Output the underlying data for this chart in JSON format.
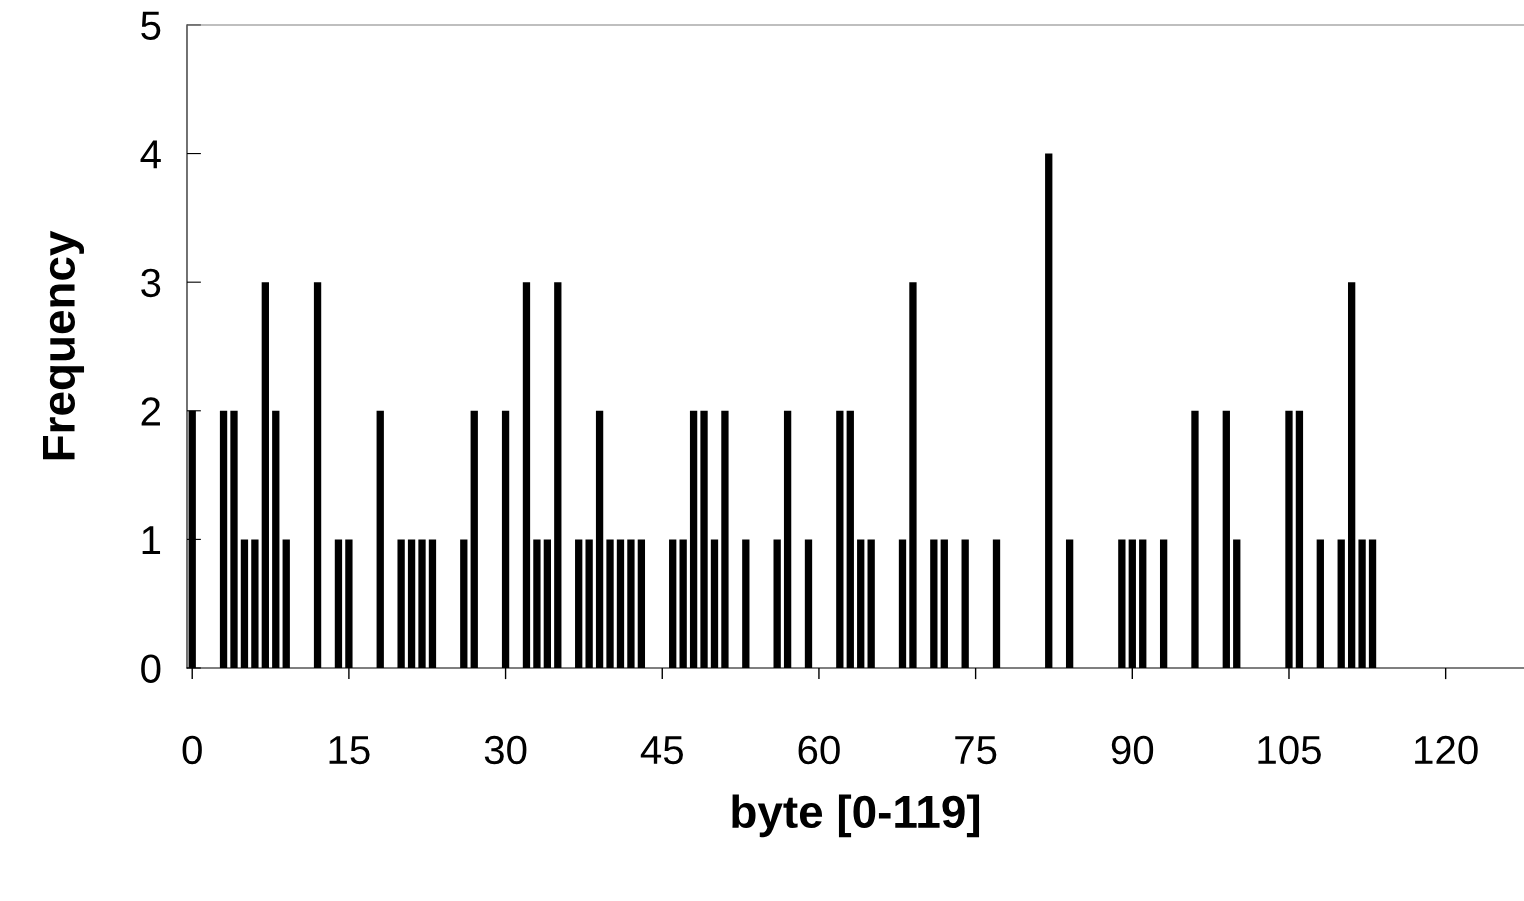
{
  "chart_data": {
    "type": "bar",
    "xlabel": "byte [0-119]",
    "ylabel": "Frequency",
    "x": [
      0,
      3,
      4,
      5,
      6,
      7,
      8,
      9,
      12,
      14,
      15,
      18,
      20,
      21,
      22,
      23,
      26,
      27,
      30,
      32,
      33,
      34,
      35,
      37,
      38,
      39,
      40,
      41,
      42,
      43,
      46,
      47,
      48,
      49,
      50,
      51,
      53,
      56,
      57,
      59,
      62,
      63,
      64,
      65,
      68,
      69,
      71,
      72,
      74,
      77,
      82,
      84,
      89,
      90,
      91,
      93,
      96,
      99,
      100,
      105,
      106,
      108,
      110,
      111,
      112,
      113
    ],
    "values": [
      2,
      2,
      2,
      1,
      1,
      3,
      2,
      1,
      3,
      1,
      1,
      2,
      1,
      1,
      1,
      1,
      1,
      2,
      2,
      3,
      1,
      1,
      3,
      1,
      1,
      2,
      1,
      1,
      1,
      1,
      1,
      1,
      2,
      2,
      1,
      2,
      1,
      1,
      2,
      1,
      2,
      2,
      1,
      1,
      1,
      3,
      1,
      1,
      1,
      1,
      4,
      1,
      1,
      1,
      1,
      1,
      2,
      2,
      1,
      2,
      2,
      1,
      1,
      3,
      1,
      1
    ],
    "color": "#000000",
    "xlim": [
      -0.5,
      127.5
    ],
    "xticks": [
      {
        "value": 0,
        "label": "0"
      },
      {
        "value": 15,
        "label": "15"
      },
      {
        "value": 30,
        "label": "30"
      },
      {
        "value": 45,
        "label": "45"
      },
      {
        "value": 60,
        "label": "60"
      },
      {
        "value": 75,
        "label": "75"
      },
      {
        "value": 90,
        "label": "90"
      },
      {
        "value": 105,
        "label": "105"
      },
      {
        "value": 120,
        "label": "120"
      }
    ],
    "ylim": [
      0,
      5
    ],
    "yticks": [
      0,
      1,
      2,
      3,
      4,
      5
    ],
    "grid": false
  }
}
